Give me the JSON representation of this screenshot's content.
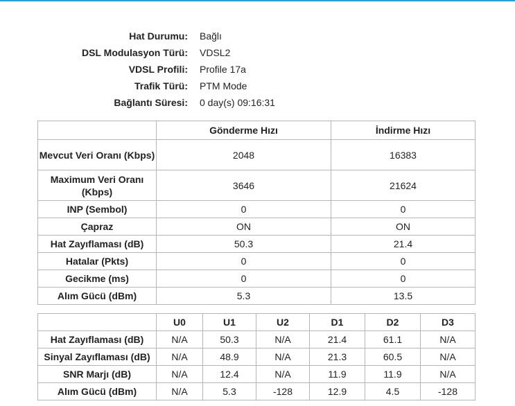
{
  "status": {
    "rows": [
      {
        "label": "Hat Durumu:",
        "value": "Bağlı"
      },
      {
        "label": "DSL Modulasyon Türü:",
        "value": "VDSL2"
      },
      {
        "label": "VDSL Profili:",
        "value": "Profile 17a"
      },
      {
        "label": "Trafik Türü:",
        "value": "PTM Mode"
      },
      {
        "label": "Bağlantı Süresi:",
        "value": "0 day(s) 09:16:31"
      }
    ]
  },
  "speed_table": {
    "headers": [
      "",
      "Gönderme Hızı",
      "İndirme Hızı"
    ],
    "rows": [
      {
        "label": "Mevcut Veri Oranı (Kbps)",
        "up": "2048",
        "down": "16383"
      },
      {
        "label": "Maximum Veri Oranı (Kbps)",
        "up": "3646",
        "down": "21624"
      },
      {
        "label": "INP (Sembol)",
        "up": "0",
        "down": "0"
      },
      {
        "label": "Çapraz",
        "up": "ON",
        "down": "ON"
      },
      {
        "label": "Hat Zayıflaması (dB)",
        "up": "50.3",
        "down": "21.4"
      },
      {
        "label": "Hatalar (Pkts)",
        "up": "0",
        "down": "0"
      },
      {
        "label": "Gecikme (ms)",
        "up": "0",
        "down": "0"
      },
      {
        "label": "Alım Gücü (dBm)",
        "up": "5.3",
        "down": "13.5"
      }
    ]
  },
  "band_table": {
    "headers": [
      "",
      "U0",
      "U1",
      "U2",
      "D1",
      "D2",
      "D3"
    ],
    "rows": [
      {
        "label": "Hat Zayıflaması (dB)",
        "values": [
          "N/A",
          "50.3",
          "N/A",
          "21.4",
          "61.1",
          "N/A"
        ]
      },
      {
        "label": "Sinyal Zayıflaması (dB)",
        "values": [
          "N/A",
          "48.9",
          "N/A",
          "21.3",
          "60.5",
          "N/A"
        ]
      },
      {
        "label": "SNR Marjı (dB)",
        "values": [
          "N/A",
          "12.4",
          "N/A",
          "11.9",
          "11.9",
          "N/A"
        ]
      },
      {
        "label": "Alım Gücü (dBm)",
        "values": [
          "N/A",
          "5.3",
          "-128",
          "12.9",
          "4.5",
          "-128"
        ]
      }
    ]
  },
  "colors": {
    "accent": "#1e9fd8",
    "border": "#b5b5b5"
  }
}
